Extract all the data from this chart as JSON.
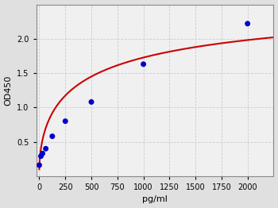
{
  "x_data": [
    0,
    15.6,
    31.2,
    62.5,
    125,
    250,
    500,
    1000,
    2000
  ],
  "y_data": [
    0.16,
    0.29,
    0.33,
    0.4,
    0.58,
    0.8,
    1.08,
    1.63,
    2.22
  ],
  "dot_color": "#0000cc",
  "curve_color": "#cc0000",
  "xlabel": "pg/ml",
  "ylabel": "OD450",
  "xlim": [
    -30,
    2250
  ],
  "ylim": [
    0.0,
    2.5
  ],
  "xticks": [
    0,
    250,
    500,
    750,
    1000,
    1250,
    1500,
    1750,
    2000
  ],
  "yticks": [
    0.5,
    1.0,
    1.5,
    2.0
  ],
  "grid_color": "#cccccc",
  "bg_color": "#e0e0e0",
  "plot_bg_color": "#f0f0f0",
  "dot_size": 25,
  "curve_linewidth": 1.5,
  "figsize": [
    3.5,
    2.62
  ],
  "dpi": 100
}
